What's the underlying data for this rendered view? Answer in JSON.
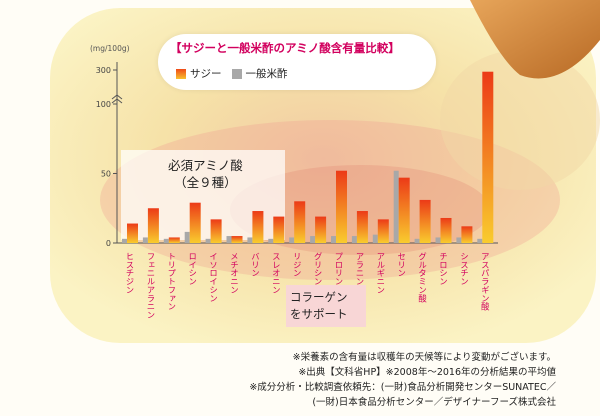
{
  "chart_data": {
    "type": "bar",
    "title": "【サジーと一般米酢のアミノ酸含有量比較】",
    "unit": "(mg/100g)",
    "y_ticks": [
      "0",
      "50",
      "100",
      "300"
    ],
    "legend": [
      {
        "name": "サジー",
        "color": "#f26a1b"
      },
      {
        "name": "一般米酢",
        "color": "#a8a8a8"
      }
    ],
    "categories": [
      "ヒスチジン",
      "フェニルアラニン",
      "トリプトファン",
      "ロイシン",
      "イソロイシン",
      "メチオニン",
      "バリン",
      "スレオニン",
      "リジン",
      "グリシン",
      "プロリン",
      "アラニン",
      "アルギニン",
      "セリン",
      "グルタミン酸",
      "チロシン",
      "シスチン",
      "アスパラギン酸"
    ],
    "series": [
      {
        "name": "サジー",
        "values": [
          14,
          25,
          4,
          29,
          17,
          5,
          23,
          19,
          30,
          19,
          52,
          23,
          17,
          47,
          31,
          18,
          12,
          290
        ]
      },
      {
        "name": "一般米酢",
        "values": [
          3,
          4,
          3,
          8,
          3,
          5,
          4,
          3,
          4,
          5,
          5,
          5,
          6,
          52,
          3,
          4,
          4,
          3
        ]
      }
    ],
    "category_color": "#d2005e",
    "axis_break": true
  },
  "essential": {
    "line1": "必須アミノ酸",
    "line2": "（全９種）"
  },
  "collagen": {
    "line1": "コラーゲン",
    "line2": "をサポート"
  },
  "notes": [
    "※栄養素の含有量は収穫年の天候等により変動がございます。",
    "※出典【文科省HP】※2008年〜2016年の分析結果の平均値",
    "※成分分析・比較調査依頼先：(一財)食品分析開発センターSUNATEC／",
    "(一財)日本食品分析センター／デザイナーフーズ株式会社"
  ]
}
